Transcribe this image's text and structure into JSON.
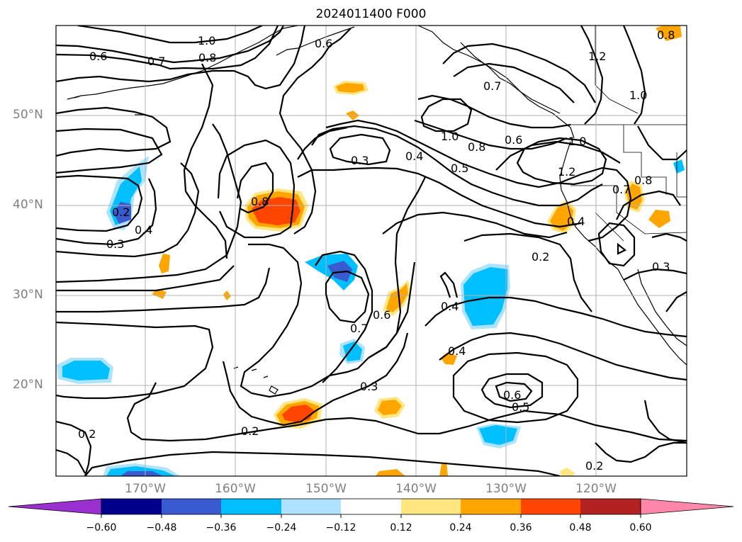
{
  "title": "2024011400 F000",
  "lat_labels": [
    "50°N",
    "40°N",
    "30°N",
    "20°N"
  ],
  "lon_labels": [
    "170°W",
    "160°W",
    "150°W",
    "140°W",
    "130°W",
    "120°W"
  ],
  "contour_labels": [
    "1.0",
    "0.6",
    "0.8",
    "0.6",
    "0.7",
    "0.8",
    "1.2",
    "1.0",
    "0.7",
    "1.0",
    "0.8",
    "0.6",
    "0.3",
    "0.4",
    "0.5",
    "1.0",
    "1.2",
    "0.8",
    "0.7",
    "0.8",
    "0.2",
    "0.4",
    "0.3",
    "0.4",
    "0.2",
    "0.3",
    "0.6",
    "0.7",
    "0.4",
    "0.4",
    "0.3",
    "0.6",
    "0.5",
    "0.2",
    "0.2",
    "0.2"
  ],
  "colorbar": {
    "ticks": [
      "−0.60",
      "−0.48",
      "−0.36",
      "−0.24",
      "−0.12",
      "0.12",
      "0.24",
      "0.36",
      "0.48",
      "0.60"
    ],
    "colors": [
      "#9b30d0",
      "#00008b",
      "#3a5bd0",
      "#00bfff",
      "#aee3ff",
      "#ffffff",
      "#ffe680",
      "#ffa500",
      "#ff4500",
      "#b22222",
      "#ff88aa"
    ]
  }
}
